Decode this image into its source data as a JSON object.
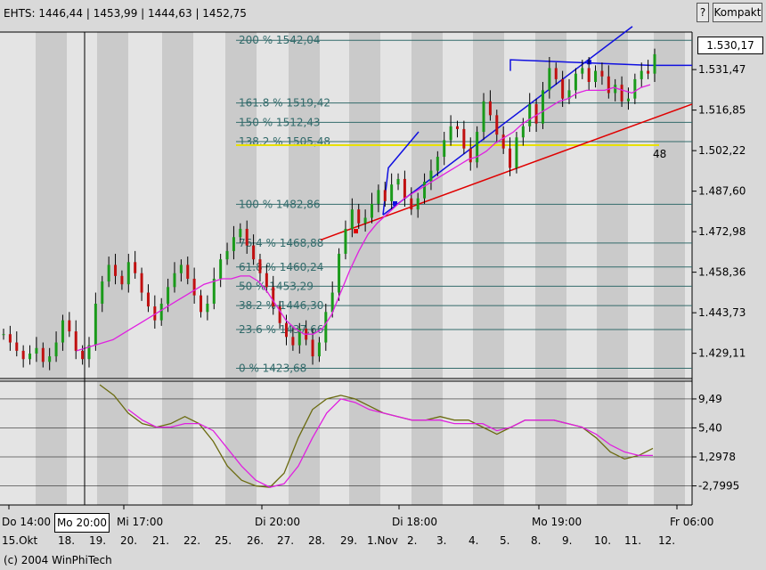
{
  "header": {
    "quote": "EHTS: 1446,44 | 1453,99 | 1444,63 | 1452,75",
    "help_label": "?",
    "mode_label": "Kompakt"
  },
  "price_box": "1.530,17",
  "cursor_box": "Mo 20:00",
  "copyright": "(c) 2004 WinPhiTech",
  "chart_data": [
    {
      "type": "candlestick",
      "title": "",
      "ylim": [
        1420,
        1545
      ],
      "y_ticks": [
        {
          "label": "1.531,47",
          "value": 1531.47
        },
        {
          "label": "1.516,85",
          "value": 1516.85
        },
        {
          "label": "1.502,22",
          "value": 1502.22
        },
        {
          "label": "1.487,60",
          "value": 1487.6
        },
        {
          "label": "1.472,98",
          "value": 1472.98
        },
        {
          "label": "1.458,36",
          "value": 1458.36
        },
        {
          "label": "1.443,73",
          "value": 1443.73
        },
        {
          "label": "1.429,11",
          "value": 1429.11
        }
      ],
      "fibonacci_levels": [
        {
          "label": "200 % 1542,04",
          "value": 1542.04
        },
        {
          "label": "161.8 % 1519,42",
          "value": 1519.42
        },
        {
          "label": "150 % 1512,43",
          "value": 1512.43
        },
        {
          "label": "138.2 % 1505,48",
          "value": 1505.48
        },
        {
          "label": "100 % 1482,86",
          "value": 1482.86
        },
        {
          "label": "76.4 % 1468,88",
          "value": 1468.88
        },
        {
          "label": "61.8 % 1460,24",
          "value": 1460.24
        },
        {
          "label": "50 % 1453,29",
          "value": 1453.29
        },
        {
          "label": "38.2 % 1446,30",
          "value": 1446.3
        },
        {
          "label": "23.6 % 1437,66",
          "value": 1437.66
        },
        {
          "label": "0 % 1423,68",
          "value": 1423.68
        }
      ],
      "annotation": "48",
      "series": [
        {
          "type": "candlestick",
          "color_up": "#1a9a1a",
          "color_down": "#c01010",
          "closes": [
            1436,
            1433,
            1430,
            1427,
            1429,
            1431,
            1426,
            1428,
            1433,
            1441,
            1437,
            1430,
            1427,
            1432,
            1447,
            1455,
            1461,
            1457,
            1454,
            1462,
            1458,
            1451,
            1446,
            1441,
            1447,
            1453,
            1458,
            1461,
            1456,
            1450,
            1444,
            1447,
            1456,
            1463,
            1466,
            1471,
            1474,
            1468,
            1463,
            1458,
            1453,
            1446,
            1440,
            1435,
            1432,
            1438,
            1434,
            1428,
            1433,
            1444,
            1451,
            1465,
            1474,
            1481,
            1476,
            1478,
            1483,
            1488,
            1484,
            1490,
            1492,
            1485,
            1481,
            1485,
            1491,
            1495,
            1500,
            1506,
            1511,
            1510,
            1503,
            1498,
            1509,
            1520,
            1515,
            1508,
            1503,
            1496,
            1507,
            1511,
            1519,
            1512,
            1524,
            1532,
            1528,
            1521,
            1524,
            1530,
            1532,
            1527,
            1531,
            1529,
            1523,
            1526,
            1520,
            1521,
            1528,
            1531,
            1530,
            1537
          ]
        },
        {
          "type": "line",
          "name": "",
          "color": "#e020e0",
          "description_of_values": "moving average",
          "values": [
            1430,
            1431,
            1432,
            1433,
            1434,
            1436,
            1438,
            1440,
            1442,
            1444,
            1446,
            1448,
            1450,
            1452,
            1454,
            1455,
            1456,
            1456,
            1457,
            1457,
            1455,
            1451,
            1446,
            1441,
            1438,
            1436,
            1436,
            1438,
            1443,
            1451,
            1459,
            1466,
            1472,
            1476,
            1479,
            1482,
            1485,
            1487,
            1489,
            1491,
            1493,
            1495,
            1497,
            1499,
            1500,
            1502,
            1505,
            1507,
            1509,
            1512,
            1514,
            1516,
            1518,
            1520,
            1521,
            1523,
            1524,
            1524,
            1524,
            1525,
            1524,
            1523,
            1525,
            1526
          ]
        }
      ],
      "drawn_lines": [
        {
          "name": "support line",
          "color": "#e00000"
        },
        {
          "name": "blue trend channel",
          "color": "#1010e0"
        },
        {
          "name": "yellow level",
          "color": "#e8e000"
        }
      ]
    },
    {
      "type": "line",
      "title": "",
      "ylim": [
        -5.5,
        12
      ],
      "y_ticks": [
        {
          "label": "9,49",
          "value": 9.49
        },
        {
          "label": "5,40",
          "value": 5.4
        },
        {
          "label": "1,2978",
          "value": 1.2978
        },
        {
          "label": "-2,7995",
          "value": -2.7995
        }
      ],
      "series": [
        {
          "name": "",
          "color": "#6b6b10",
          "values": [
            11.5,
            10.0,
            7.5,
            6.0,
            5.5,
            6.0,
            7.0,
            6.0,
            3.5,
            0.0,
            -2.0,
            -2.8,
            -3.0,
            -1.0,
            4.0,
            8.0,
            9.5,
            10.0,
            9.5,
            8.5,
            7.5,
            7.0,
            6.5,
            6.5,
            7.0,
            6.5,
            6.5,
            5.5,
            4.5,
            5.5,
            6.5,
            6.5,
            6.5,
            6.0,
            5.5,
            4.0,
            2.0,
            1.0,
            1.5,
            2.5
          ]
        },
        {
          "name": "",
          "color": "#e020e0",
          "values": [
            null,
            null,
            8.0,
            6.5,
            5.5,
            5.5,
            6.0,
            6.0,
            5.0,
            2.5,
            0.0,
            -2.0,
            -3.0,
            -2.5,
            0.0,
            4.0,
            7.5,
            9.5,
            9.0,
            8.0,
            7.5,
            7.0,
            6.5,
            6.5,
            6.5,
            6.0,
            6.0,
            6.0,
            5.0,
            5.5,
            6.5,
            6.5,
            6.5,
            6.0,
            5.5,
            4.5,
            3.0,
            2.0,
            1.5,
            1.5
          ]
        }
      ]
    }
  ],
  "x_axis": {
    "upper_labels": [
      "Do 14:00",
      "Mi 17:00",
      "Di 20:00",
      "Di 18:00",
      "Mo 19:00",
      "Fr 06:00"
    ],
    "lower_labels": [
      "15.Okt",
      "18.",
      "19.",
      "20.",
      "21.",
      "22.",
      "25.",
      "26.",
      "27.",
      "28.",
      "29.",
      "1.Nov",
      "2.",
      "3.",
      "4.",
      "5.",
      "8.",
      "9.",
      "10.",
      "11.",
      "12."
    ]
  }
}
